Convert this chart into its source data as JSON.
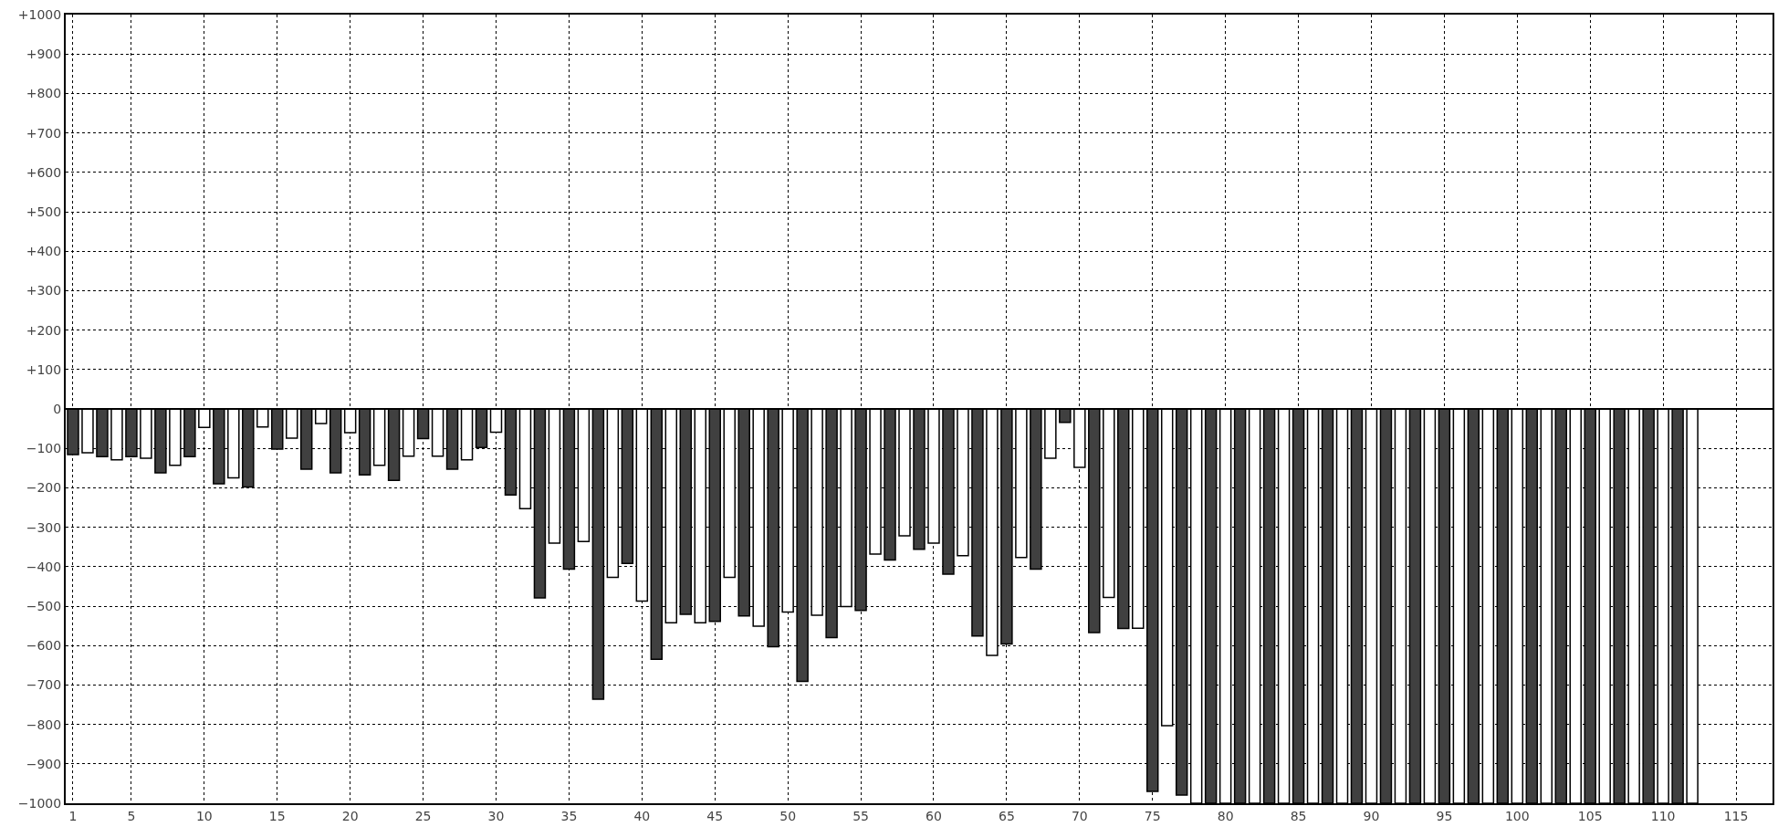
{
  "chart_data": {
    "type": "bar",
    "series": [
      {
        "color": "#404040",
        "x": [
          1,
          3,
          5,
          7,
          9,
          11,
          13,
          15,
          17,
          19,
          21,
          23,
          25,
          27,
          29,
          31,
          33,
          35,
          37,
          39,
          41,
          43,
          45,
          47,
          49,
          51,
          53,
          55,
          57,
          59,
          61,
          63,
          65,
          67,
          69,
          71,
          73,
          75,
          77,
          79,
          81,
          83,
          85,
          87,
          89,
          91,
          93,
          95,
          97,
          99,
          101,
          103,
          105,
          107,
          109,
          111
        ],
        "values": [
          -116,
          -121,
          -121,
          -162,
          -121,
          -190,
          -198,
          -102,
          -153,
          -162,
          -167,
          -181,
          -75,
          -153,
          -98,
          -218,
          -479,
          -406,
          -736,
          -392,
          -635,
          -521,
          -539,
          -525,
          -603,
          -691,
          -580,
          -511,
          -383,
          -356,
          -419,
          -576,
          -596,
          -406,
          -34,
          -567,
          -557,
          -970,
          -979,
          -1000,
          -1000,
          -1000,
          -1000,
          -1000,
          -1000,
          -1000,
          -1000,
          -1000,
          -1000,
          -1000,
          -1000,
          -1000,
          -1000,
          -1000,
          -1000,
          -1000
        ]
      },
      {
        "color": "#ffffff",
        "x": [
          2,
          4,
          6,
          8,
          10,
          12,
          14,
          16,
          18,
          20,
          22,
          24,
          26,
          28,
          30,
          32,
          34,
          36,
          38,
          40,
          42,
          44,
          46,
          48,
          50,
          52,
          54,
          56,
          58,
          60,
          62,
          64,
          66,
          68,
          70,
          72,
          74,
          76,
          78,
          80,
          82,
          84,
          86,
          88,
          90,
          92,
          94,
          96,
          98,
          100,
          102,
          104,
          106,
          108,
          110,
          112
        ],
        "values": [
          -111,
          -129,
          -125,
          -143,
          -47,
          -175,
          -46,
          -74,
          -37,
          -60,
          -143,
          -120,
          -120,
          -129,
          -59,
          -253,
          -340,
          -336,
          -427,
          -487,
          -542,
          -542,
          -427,
          -551,
          -515,
          -523,
          -501,
          -368,
          -322,
          -340,
          -372,
          -625,
          -377,
          -125,
          -148,
          -478,
          -556,
          -803,
          -1000,
          -1000,
          -1000,
          -1000,
          -1000,
          -1000,
          -1000,
          -1000,
          -1000,
          -1000,
          -1000,
          -1000,
          -1000,
          -1000,
          -1000,
          -1000,
          -1000,
          -1000
        ]
      }
    ],
    "xlim": [
      0.5,
      117.5
    ],
    "xticks": [
      1,
      5,
      10,
      15,
      20,
      25,
      30,
      35,
      40,
      45,
      50,
      55,
      60,
      65,
      70,
      75,
      80,
      85,
      90,
      95,
      100,
      105,
      110,
      115
    ],
    "ylim": [
      -1000,
      1000
    ],
    "yticks": [
      {
        "value": 1000,
        "label": "+1000"
      },
      {
        "value": 900,
        "label": "+900"
      },
      {
        "value": 800,
        "label": "+800"
      },
      {
        "value": 700,
        "label": "+700"
      },
      {
        "value": 600,
        "label": "+600"
      },
      {
        "value": 500,
        "label": "+500"
      },
      {
        "value": 400,
        "label": "+400"
      },
      {
        "value": 300,
        "label": "+300"
      },
      {
        "value": 200,
        "label": "+200"
      },
      {
        "value": 100,
        "label": "+100"
      },
      0,
      {
        "value": -100,
        "label": "−100"
      },
      {
        "value": -200,
        "label": "−200"
      },
      {
        "value": -300,
        "label": "−300"
      },
      {
        "value": -400,
        "label": "−400"
      },
      {
        "value": -500,
        "label": "−500"
      },
      {
        "value": -600,
        "label": "−600"
      },
      {
        "value": -700,
        "label": "−700"
      },
      {
        "value": -800,
        "label": "−800"
      },
      {
        "value": -900,
        "label": "−900"
      },
      {
        "value": -1000,
        "label": "−1000"
      }
    ],
    "grid": true
  }
}
